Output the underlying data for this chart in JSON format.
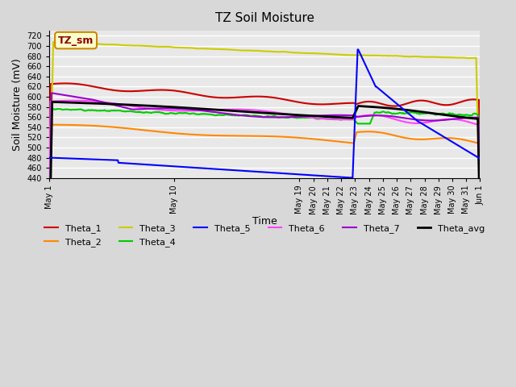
{
  "title": "TZ Soil Moisture",
  "ylabel": "Soil Moisture (mV)",
  "xlabel": "Time",
  "annotation": "TZ_sm",
  "ylim": [
    440,
    730
  ],
  "background_color": "#e8e8e8",
  "grid_color": "#ffffff",
  "series": {
    "Theta_1": {
      "color": "#cc0000",
      "lw": 1.5
    },
    "Theta_2": {
      "color": "#ff8800",
      "lw": 1.5
    },
    "Theta_3": {
      "color": "#cccc00",
      "lw": 1.5
    },
    "Theta_4": {
      "color": "#00cc00",
      "lw": 1.5
    },
    "Theta_5": {
      "color": "#0000ff",
      "lw": 1.5
    },
    "Theta_6": {
      "color": "#ff44ff",
      "lw": 1.5
    },
    "Theta_7": {
      "color": "#9900cc",
      "lw": 1.5
    },
    "Theta_avg": {
      "color": "#000000",
      "lw": 2.0
    }
  }
}
